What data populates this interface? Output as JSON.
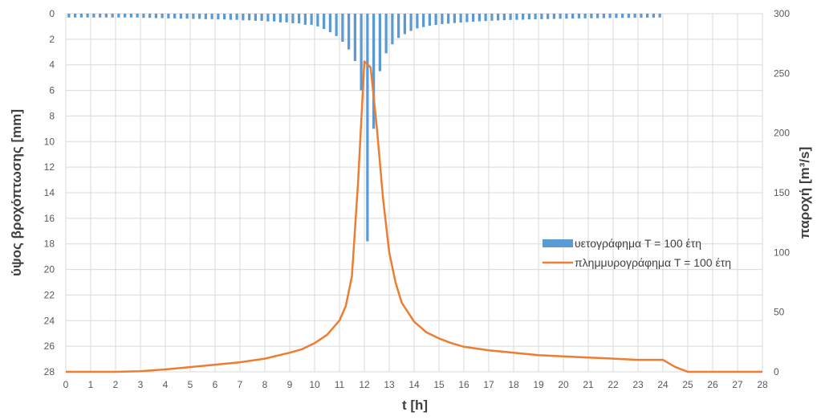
{
  "chart_data": {
    "type": "bar+line",
    "xlabel": "t [h]",
    "ylabel_left": "ύψος βροχόπτωσης [mm]",
    "ylabel_right": "παροχή [m³/s]",
    "xlim": [
      0,
      28
    ],
    "ylim_left": [
      0,
      28
    ],
    "ylim_left_inverted": true,
    "ylim_right": [
      0,
      300
    ],
    "x_ticks": [
      "0",
      "1",
      "2",
      "3",
      "4",
      "5",
      "6",
      "7",
      "8",
      "9",
      "10",
      "11",
      "12",
      "13",
      "14",
      "15",
      "16",
      "17",
      "18",
      "19",
      "20",
      "21",
      "22",
      "23",
      "24",
      "25",
      "26",
      "27",
      "28"
    ],
    "y_left_ticks": [
      "0",
      "2",
      "4",
      "6",
      "8",
      "10",
      "12",
      "14",
      "16",
      "18",
      "20",
      "22",
      "24",
      "26",
      "28"
    ],
    "y_right_ticks": [
      "0",
      "50",
      "100",
      "150",
      "200",
      "250",
      "300"
    ],
    "grid": true,
    "legend_position": "right",
    "series": [
      {
        "name": "υετογράφημα T = 100 έτη",
        "type": "bar",
        "axis": "left",
        "color": "#5B9BD5",
        "x": [
          0.125,
          0.375,
          0.625,
          0.875,
          1.125,
          1.375,
          1.625,
          1.875,
          2.125,
          2.375,
          2.625,
          2.875,
          3.125,
          3.375,
          3.625,
          3.875,
          4.125,
          4.375,
          4.625,
          4.875,
          5.125,
          5.375,
          5.625,
          5.875,
          6.125,
          6.375,
          6.625,
          6.875,
          7.125,
          7.375,
          7.625,
          7.875,
          8.125,
          8.375,
          8.625,
          8.875,
          9.125,
          9.375,
          9.625,
          9.875,
          10.125,
          10.375,
          10.625,
          10.875,
          11.125,
          11.375,
          11.625,
          11.875,
          12.125,
          12.375,
          12.625,
          12.875,
          13.125,
          13.375,
          13.625,
          13.875,
          14.125,
          14.375,
          14.625,
          14.875,
          15.125,
          15.375,
          15.625,
          15.875,
          16.125,
          16.375,
          16.625,
          16.875,
          17.125,
          17.375,
          17.625,
          17.875,
          18.125,
          18.375,
          18.625,
          18.875,
          19.125,
          19.375,
          19.625,
          19.875,
          20.125,
          20.375,
          20.625,
          20.875,
          21.125,
          21.375,
          21.625,
          21.875,
          22.125,
          22.375,
          22.625,
          22.875,
          23.125,
          23.375,
          23.625,
          23.875
        ],
        "values": [
          0.3,
          0.3,
          0.3,
          0.3,
          0.3,
          0.3,
          0.3,
          0.3,
          0.3,
          0.3,
          0.3,
          0.3,
          0.33,
          0.33,
          0.35,
          0.35,
          0.37,
          0.37,
          0.39,
          0.39,
          0.41,
          0.41,
          0.43,
          0.43,
          0.45,
          0.45,
          0.48,
          0.48,
          0.52,
          0.52,
          0.56,
          0.56,
          0.61,
          0.61,
          0.68,
          0.68,
          0.76,
          0.76,
          0.87,
          0.87,
          1.0,
          1.2,
          1.45,
          1.75,
          2.2,
          2.8,
          3.7,
          6.0,
          17.8,
          9.0,
          4.5,
          3.1,
          2.4,
          1.9,
          1.6,
          1.35,
          1.15,
          1.05,
          0.95,
          0.88,
          0.82,
          0.78,
          0.73,
          0.7,
          0.66,
          0.63,
          0.6,
          0.58,
          0.55,
          0.53,
          0.51,
          0.49,
          0.48,
          0.47,
          0.45,
          0.44,
          0.43,
          0.42,
          0.41,
          0.4,
          0.39,
          0.38,
          0.37,
          0.37,
          0.36,
          0.35,
          0.35,
          0.34,
          0.34,
          0.33,
          0.33,
          0.32,
          0.32,
          0.31,
          0.31,
          0.3
        ]
      },
      {
        "name": "πλημμυρογράφημα T = 100 έτη",
        "type": "line",
        "axis": "right",
        "color": "#ED7D31",
        "x": [
          0,
          1,
          2,
          3,
          4,
          5,
          6,
          7,
          8,
          9,
          9.5,
          10,
          10.5,
          11,
          11.25,
          11.5,
          11.75,
          12,
          12.25,
          12.5,
          12.75,
          13,
          13.25,
          13.5,
          14,
          14.5,
          15,
          15.5,
          16,
          17,
          18,
          19,
          20,
          21,
          22,
          23,
          24,
          24.5,
          25,
          26,
          27,
          28
        ],
        "values": [
          0,
          0,
          0,
          0.5,
          2,
          4,
          6,
          8,
          11,
          16,
          19,
          24,
          31,
          43,
          55,
          80,
          160,
          260,
          255,
          205,
          145,
          100,
          75,
          58,
          42,
          33,
          28,
          24,
          21,
          18,
          16,
          14,
          13,
          12,
          11,
          10,
          10,
          4,
          0,
          0,
          0,
          0
        ]
      }
    ]
  }
}
